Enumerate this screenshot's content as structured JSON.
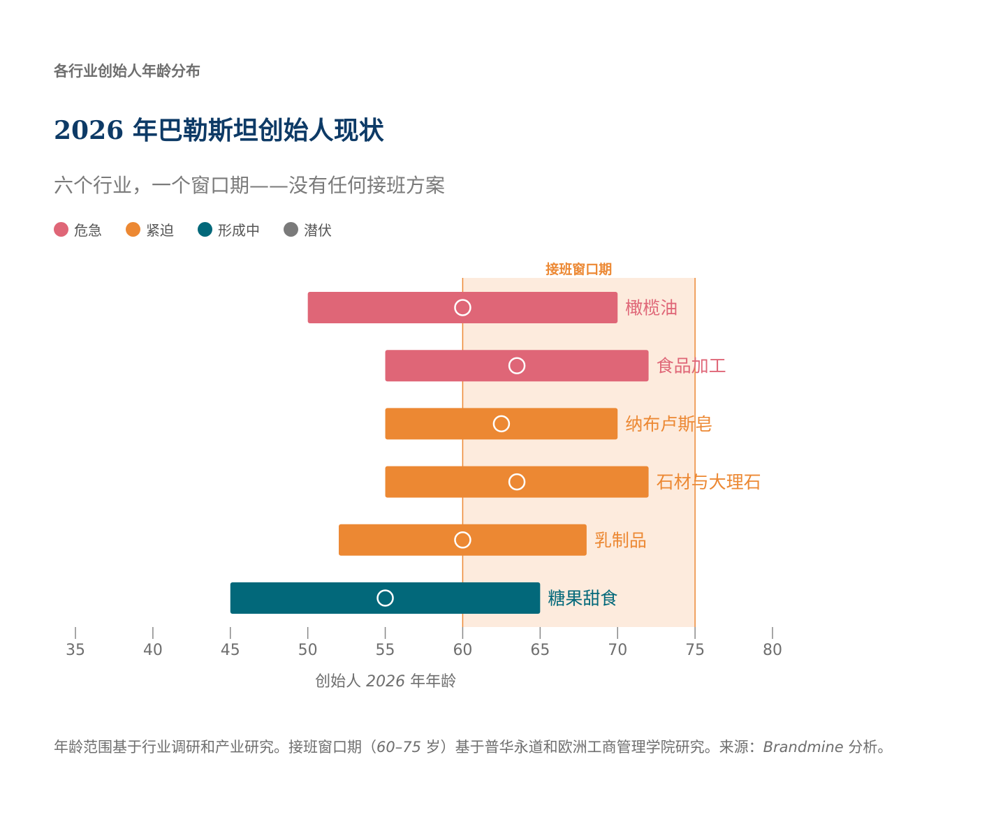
{
  "kicker": "各行业创始人年龄分布",
  "title": "2026 年巴勒斯坦创始人现状",
  "subtitle": "六个行业，一个窗口期——没有任何接班方案",
  "legend": [
    {
      "label": "危急",
      "color": "#df6677"
    },
    {
      "label": "紧迫",
      "color": "#ec8833"
    },
    {
      "label": "形成中",
      "color": "#02687a"
    },
    {
      "label": "潜伏",
      "color": "#7a7a7a"
    }
  ],
  "chart_data": {
    "type": "range-bar",
    "window_label": "接班窗口期",
    "window": [
      60,
      75
    ],
    "xlim": [
      35,
      80
    ],
    "xticks": [
      "35",
      "40",
      "45",
      "50",
      "55",
      "60",
      "65",
      "70",
      "75",
      "80"
    ],
    "xlabel": {
      "pre": "创始人 ",
      "year": "2026",
      "post": " 年年龄"
    },
    "series": [
      {
        "name": "橄榄油",
        "min": 50,
        "max": 70,
        "typical": 60,
        "status": "危急",
        "color": "#df6677"
      },
      {
        "name": "食品加工",
        "min": 55,
        "max": 72,
        "typical": 63.5,
        "status": "危急",
        "color": "#df6677"
      },
      {
        "name": "纳布卢斯皂",
        "min": 55,
        "max": 70,
        "typical": 62.5,
        "status": "紧迫",
        "color": "#ec8833"
      },
      {
        "name": "石材与大理石",
        "min": 55,
        "max": 72,
        "typical": 63.5,
        "status": "紧迫",
        "color": "#ec8833"
      },
      {
        "name": "乳制品",
        "min": 52,
        "max": 68,
        "typical": 60,
        "status": "紧迫",
        "color": "#ec8833"
      },
      {
        "name": "糖果甜食",
        "min": 45,
        "max": 65,
        "typical": 55,
        "status": "形成中",
        "color": "#02687a"
      }
    ],
    "window_fill": "#fdebdd",
    "window_line": "#ec8833"
  },
  "note": {
    "text1": "年龄范围基于行业调研和产业研究。接班窗口期（",
    "range": "60–75",
    "text2": " 岁）基于普华永道和欧洲工商管理学院研究。来源：",
    "source": "Brandmine",
    "text3": " 分析。"
  }
}
